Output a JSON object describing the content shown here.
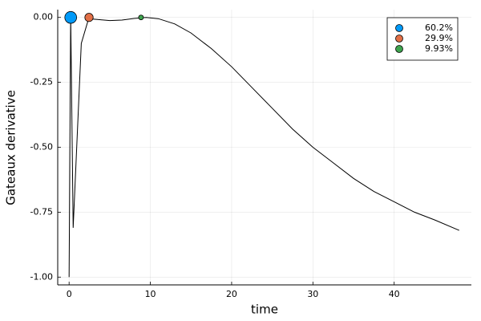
{
  "chart_data": {
    "type": "line",
    "xlabel": "time",
    "ylabel": "Gateaux derivative",
    "xlim": [
      -1.4,
      49.5
    ],
    "ylim": [
      -1.03,
      0.03
    ],
    "xticks": [
      0,
      10,
      20,
      30,
      40
    ],
    "yticks": [
      {
        "value": 0,
        "label": "0.00"
      },
      {
        "value": -0.25,
        "label": "-0.25"
      },
      {
        "value": -0.5,
        "label": "-0.50"
      },
      {
        "value": -0.75,
        "label": "-0.75"
      },
      {
        "value": -1,
        "label": "-1.00"
      }
    ],
    "grid": true,
    "legend": "top-right",
    "series": [
      {
        "mode": "line",
        "color": "#000000",
        "x": [
          0,
          0.2,
          0.5,
          1.5,
          2.4,
          3.5,
          5,
          6.5,
          8,
          9.5,
          11,
          13,
          15,
          17.5,
          20,
          22.5,
          25,
          27.5,
          30,
          32.5,
          35,
          37.5,
          40,
          42.5,
          45,
          48
        ],
        "values": [
          -1.0,
          0,
          -0.81,
          -0.1,
          -0.005,
          -0.008,
          -0.012,
          -0.01,
          -0.004,
          0,
          -0.005,
          -0.025,
          -0.06,
          -0.12,
          -0.19,
          -0.27,
          -0.35,
          -0.43,
          -0.5,
          -0.56,
          -0.62,
          -0.67,
          -0.71,
          -0.75,
          -0.78,
          -0.82
        ]
      },
      {
        "mode": "markers",
        "name": "60.2%",
        "color": "#009af9",
        "x": [
          0.2
        ],
        "values": [
          0
        ],
        "size": [
          60.2
        ]
      },
      {
        "mode": "markers",
        "name": "29.9%",
        "color": "#e26f46",
        "x": [
          2.45
        ],
        "values": [
          0
        ],
        "size": [
          29.9
        ]
      },
      {
        "mode": "markers",
        "name": "9.93%",
        "color": "#3ea44e",
        "x": [
          8.85
        ],
        "values": [
          0
        ],
        "size": [
          9.93
        ]
      }
    ]
  }
}
